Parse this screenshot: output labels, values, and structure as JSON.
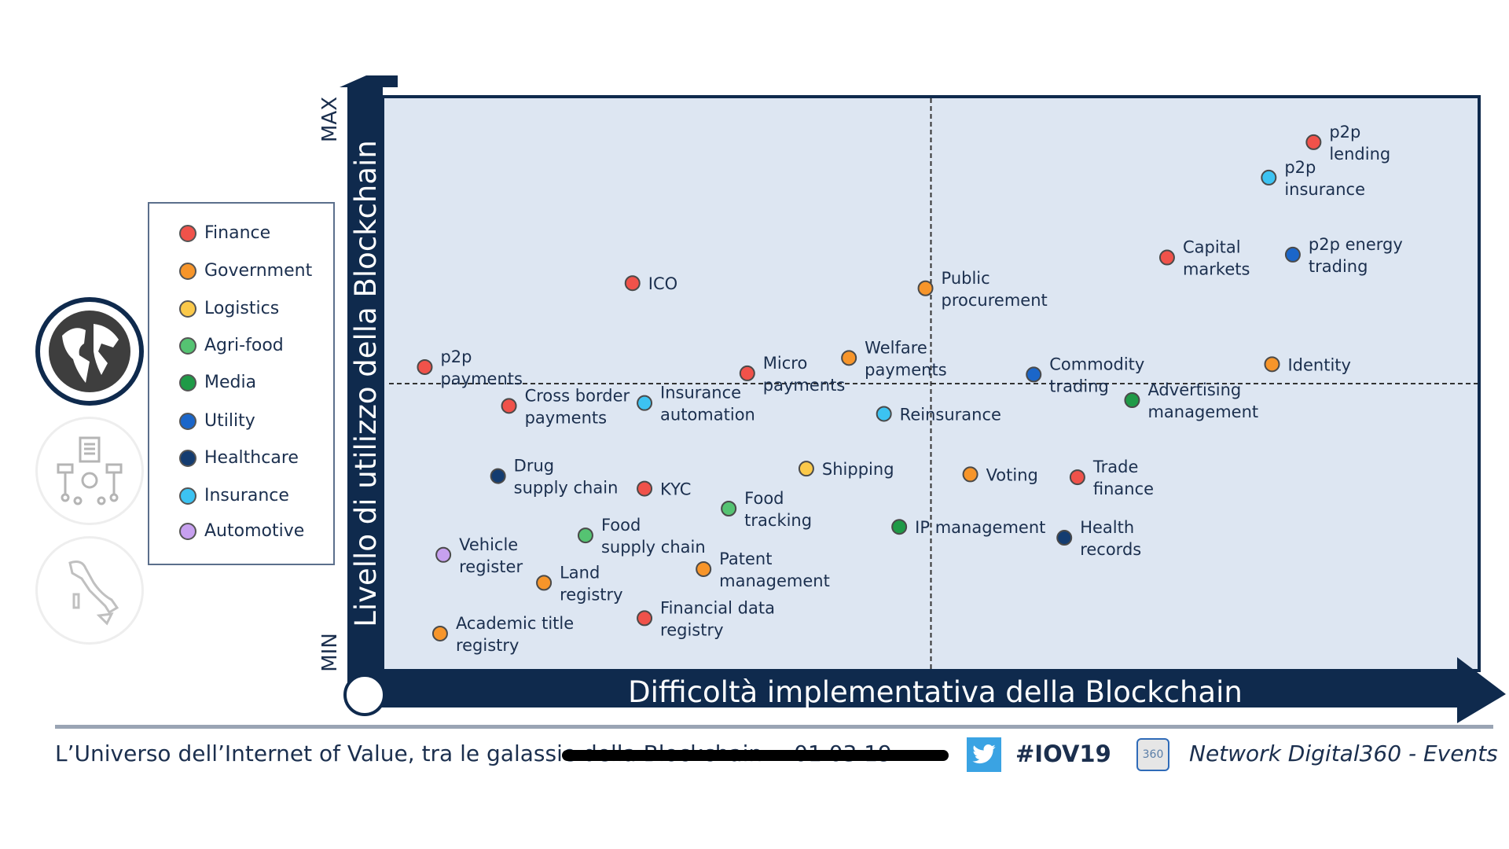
{
  "legend": {
    "items": [
      {
        "label": "Finance",
        "color": "#f0524a"
      },
      {
        "label": "Government",
        "color": "#f7952a"
      },
      {
        "label": "Logistics",
        "color": "#fbc94a"
      },
      {
        "label": "Agri-food",
        "color": "#55c372"
      },
      {
        "label": "Media",
        "color": "#1f9a47"
      },
      {
        "label": "Utility",
        "color": "#1b66c9"
      },
      {
        "label": "Healthcare",
        "color": "#143c70"
      },
      {
        "label": "Insurance",
        "color": "#3cc3f2"
      },
      {
        "label": "Automotive",
        "color": "#c7a0ef"
      }
    ]
  },
  "side_icons": [
    "globe-icon",
    "process-diagram-icon",
    "italy-map-icon"
  ],
  "footer": {
    "title": "L’Universo dell’Internet of Value, tra le galassie della Blockchain",
    "date": "01.03.19",
    "hashtag": "#IOV19",
    "network": "Network Digital360 - Events",
    "logo_text": "360",
    "twitter_color": "#3aa3e3"
  },
  "chart_data": {
    "type": "scatter",
    "title": "",
    "xlabel": "Difficoltà implementativa della Blockchain",
    "ylabel": "Livello di utilizzo della Blockchain",
    "y_min_label": "MIN",
    "y_max_label": "MAX",
    "xlim": [
      0,
      100
    ],
    "ylim": [
      0,
      100
    ],
    "quadrant_lines": {
      "x": 50,
      "y": 50
    },
    "grid": false,
    "legend_position": "left",
    "points": [
      {
        "label": [
          "p2p",
          "lending"
        ],
        "category": "Finance",
        "x": 85.0,
        "y": 92.3,
        "label_pos": "right"
      },
      {
        "label": [
          "p2p",
          "insurance"
        ],
        "category": "Insurance",
        "x": 80.9,
        "y": 86.1,
        "label_pos": "right"
      },
      {
        "label": [
          "Capital",
          "markets"
        ],
        "category": "Finance",
        "x": 71.6,
        "y": 72.1,
        "label_pos": "right"
      },
      {
        "label": [
          "p2p energy",
          "trading"
        ],
        "category": "Utility",
        "x": 83.1,
        "y": 72.6,
        "label_pos": "right"
      },
      {
        "label": [
          "ICO"
        ],
        "category": "Finance",
        "x": 22.7,
        "y": 67.6,
        "label_pos": "right"
      },
      {
        "label": [
          "Public",
          "procurement"
        ],
        "category": "Government",
        "x": 49.5,
        "y": 66.7,
        "label_pos": "right"
      },
      {
        "label": [
          "p2p",
          "payments"
        ],
        "category": "Finance",
        "x": 3.7,
        "y": 52.9,
        "label_pos": "right"
      },
      {
        "label": [
          "Micro",
          "payments"
        ],
        "category": "Finance",
        "x": 33.2,
        "y": 51.8,
        "label_pos": "right"
      },
      {
        "label": [
          "Welfare",
          "payments"
        ],
        "category": "Government",
        "x": 42.5,
        "y": 54.5,
        "label_pos": "right"
      },
      {
        "label": [
          "Commodity",
          "trading"
        ],
        "category": "Utility",
        "x": 59.4,
        "y": 51.6,
        "label_pos": "right"
      },
      {
        "label": [
          "Identity"
        ],
        "category": "Government",
        "x": 81.2,
        "y": 53.4,
        "label_pos": "right"
      },
      {
        "label": [
          "Cross border",
          "payments"
        ],
        "category": "Finance",
        "x": 11.4,
        "y": 46.1,
        "label_pos": "right"
      },
      {
        "label": [
          "Insurance",
          "automation"
        ],
        "category": "Insurance",
        "x": 23.8,
        "y": 46.6,
        "label_pos": "right"
      },
      {
        "label": [
          "Reinsurance"
        ],
        "category": "Insurance",
        "x": 45.7,
        "y": 44.7,
        "label_pos": "right"
      },
      {
        "label": [
          "Advertising",
          "management"
        ],
        "category": "Media",
        "x": 68.4,
        "y": 47.1,
        "label_pos": "right"
      },
      {
        "label": [
          "Drug",
          "supply chain"
        ],
        "category": "Healthcare",
        "x": 10.4,
        "y": 33.8,
        "label_pos": "right"
      },
      {
        "label": [
          "KYC"
        ],
        "category": "Finance",
        "x": 23.8,
        "y": 31.6,
        "label_pos": "right"
      },
      {
        "label": [
          "Shipping"
        ],
        "category": "Logistics",
        "x": 38.6,
        "y": 35.1,
        "label_pos": "right"
      },
      {
        "label": [
          "Voting"
        ],
        "category": "Government",
        "x": 53.6,
        "y": 34.1,
        "label_pos": "right"
      },
      {
        "label": [
          "Trade",
          "finance"
        ],
        "category": "Finance",
        "x": 63.4,
        "y": 33.6,
        "label_pos": "right"
      },
      {
        "label": [
          "Food",
          "tracking"
        ],
        "category": "Agri-food",
        "x": 31.5,
        "y": 28.1,
        "label_pos": "right"
      },
      {
        "label": [
          "IP management"
        ],
        "category": "Media",
        "x": 47.1,
        "y": 24.9,
        "label_pos": "right"
      },
      {
        "label": [
          "Food",
          "supply chain"
        ],
        "category": "Agri-food",
        "x": 18.4,
        "y": 23.4,
        "label_pos": "right"
      },
      {
        "label": [
          "Health",
          "records"
        ],
        "category": "Healthcare",
        "x": 62.2,
        "y": 23.0,
        "label_pos": "right"
      },
      {
        "label": [
          "Vehicle",
          "register"
        ],
        "category": "Automotive",
        "x": 5.4,
        "y": 20.0,
        "label_pos": "right"
      },
      {
        "label": [
          "Land",
          "registry"
        ],
        "category": "Government",
        "x": 14.6,
        "y": 15.1,
        "label_pos": "right"
      },
      {
        "label": [
          "Patent",
          "management"
        ],
        "category": "Government",
        "x": 29.2,
        "y": 17.5,
        "label_pos": "right"
      },
      {
        "label": [
          "Financial data",
          "registry"
        ],
        "category": "Finance",
        "x": 23.8,
        "y": 8.9,
        "label_pos": "right"
      },
      {
        "label": [
          "Academic title",
          "registry"
        ],
        "category": "Government",
        "x": 5.1,
        "y": 6.2,
        "label_pos": "right"
      }
    ]
  }
}
